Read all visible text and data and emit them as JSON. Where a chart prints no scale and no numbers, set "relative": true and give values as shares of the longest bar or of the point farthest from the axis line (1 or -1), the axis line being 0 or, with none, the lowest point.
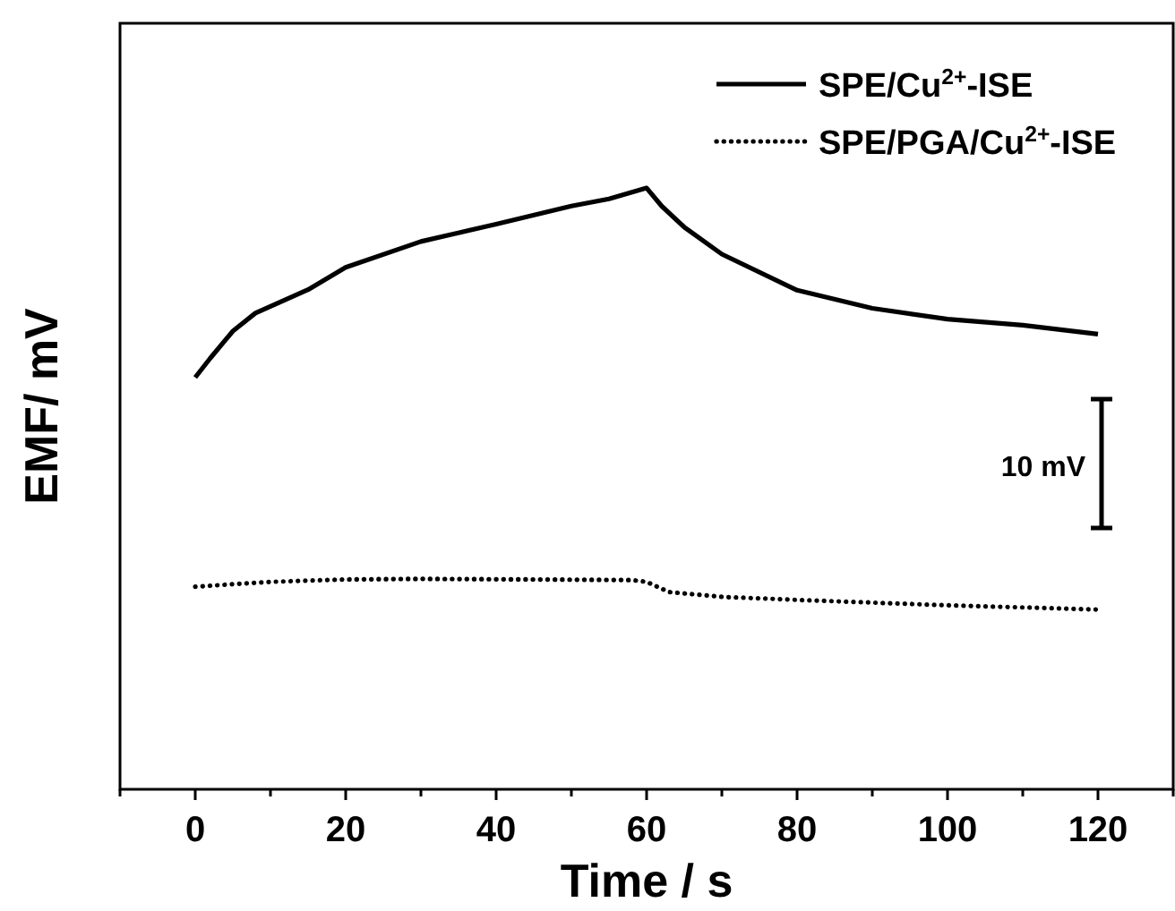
{
  "chart_data": {
    "type": "line",
    "relative": true,
    "xlabel": "Time / s",
    "ylabel": "EMF/ mV",
    "xlim": [
      -10,
      130
    ],
    "xticks": [
      {
        "value": -10,
        "label": null
      },
      0,
      {
        "value": 10,
        "label": null
      },
      20,
      {
        "value": 30,
        "label": null
      },
      40,
      {
        "value": 50,
        "label": null
      },
      60,
      {
        "value": 70,
        "label": null
      },
      80,
      {
        "value": 90,
        "label": null
      },
      100,
      {
        "value": 110,
        "label": null
      },
      120,
      {
        "value": 130,
        "label": null
      }
    ],
    "legend": "top right",
    "annotations": [
      "10 mV"
    ],
    "series": [
      {
        "name": "SPE/Cu$^{2+}$-ISE",
        "color": "#000000",
        "line_style": "solid",
        "x": [
          0,
          2,
          5,
          8,
          15,
          20,
          30,
          40,
          50,
          55,
          60,
          62,
          65,
          70,
          80,
          90,
          100,
          110,
          120
        ],
        "values": [
          0.685,
          0.717,
          0.762,
          0.792,
          0.831,
          0.868,
          0.911,
          0.94,
          0.97,
          0.982,
          1,
          0.97,
          0.935,
          0.89,
          0.83,
          0.8,
          0.782,
          0.772,
          0.757
        ]
      },
      {
        "name": "SPE/PGA/Cu$^{2+}$-ISE",
        "color": "#000000",
        "line_style": "dotted",
        "x": [
          0,
          10,
          20,
          30,
          45,
          58,
          60,
          63,
          70,
          80,
          100,
          120
        ],
        "values": [
          0.337,
          0.345,
          0.349,
          0.35,
          0.349,
          0.348,
          0.345,
          0.328,
          0.32,
          0.315,
          0.306,
          0.299
        ]
      }
    ]
  }
}
